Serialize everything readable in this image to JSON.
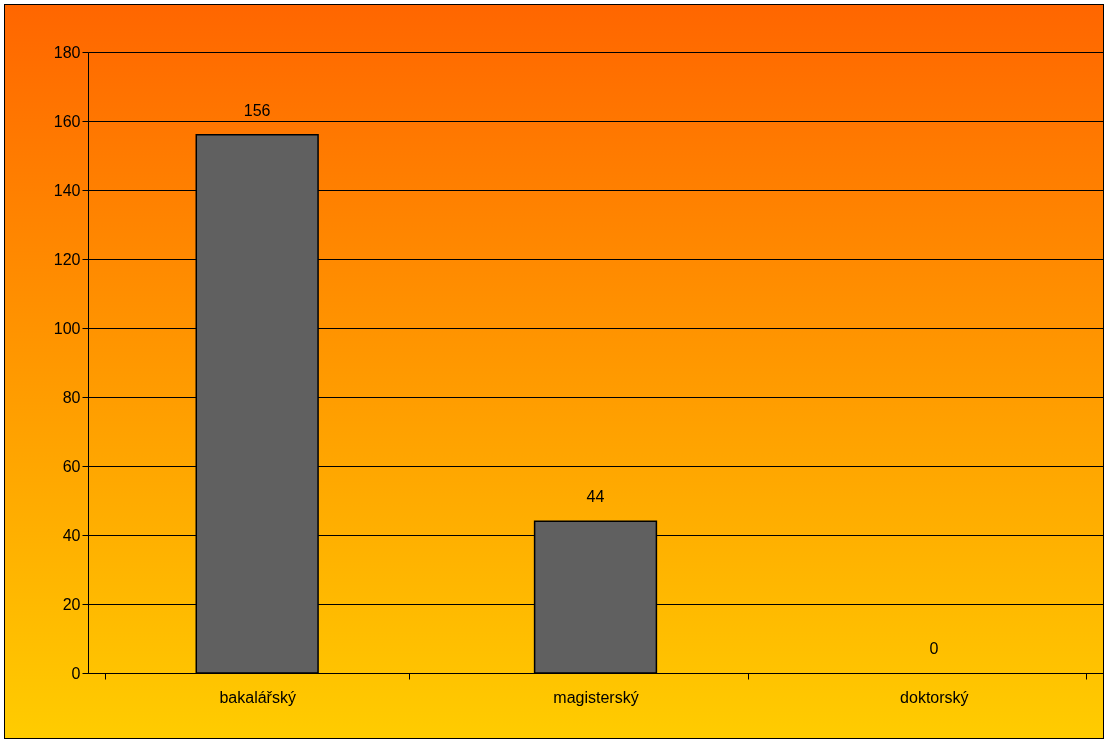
{
  "chart_data": {
    "type": "bar",
    "categories": [
      "bakalářský",
      "magisterský",
      "doktorský"
    ],
    "values": [
      156,
      44,
      0
    ],
    "color": "#606060",
    "ylim": [
      0,
      180
    ],
    "yticks": [
      0,
      20,
      40,
      60,
      80,
      100,
      120,
      140,
      160,
      180
    ],
    "grid": "y",
    "data_labels": true
  }
}
